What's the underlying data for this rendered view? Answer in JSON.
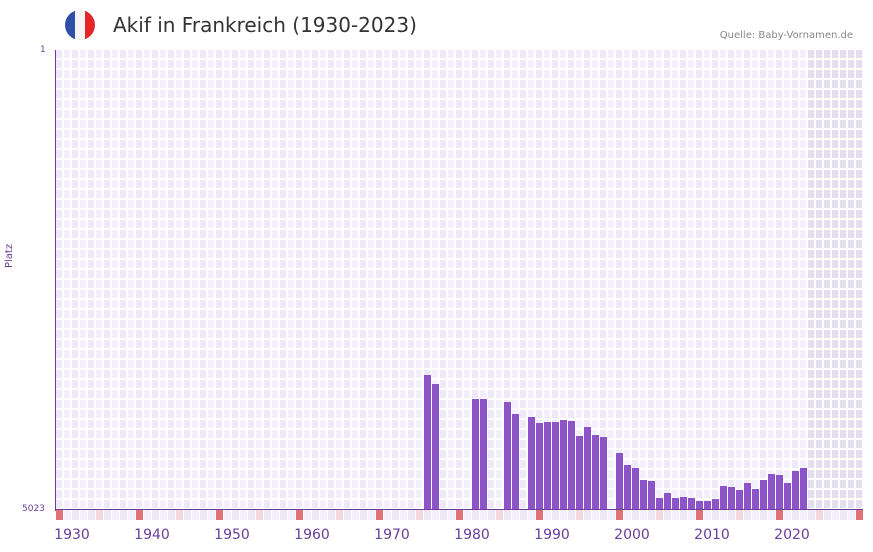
{
  "header": {
    "title": "Akif in Frankreich (1930-2023)",
    "source": "Quelle: Baby-Vornamen.de",
    "flag_colors": [
      "#2f4fa6",
      "#f4f4f4",
      "#e52628"
    ]
  },
  "colors": {
    "bar": "#8c54c8",
    "axis": "#6a3d9a",
    "grid_a": "#eee8f8",
    "grid_b": "#f3effc",
    "future": "#e3dfee",
    "decade_marker": "#e07278",
    "half_decade_marker": "#f5d7de"
  },
  "chart_data": {
    "type": "bar",
    "title": "Akif in Frankreich (1930-2023)",
    "xlabel": "",
    "ylabel": "Platz",
    "ylim": [
      5023,
      1
    ],
    "y_inverted": true,
    "ytick_labels": [
      "1",
      "5023"
    ],
    "xtick_labels": [
      "1930",
      "1940",
      "1950",
      "1960",
      "1970",
      "1980",
      "1990",
      "2000",
      "2010",
      "2020"
    ],
    "grid": true,
    "legend": null,
    "categories": [
      1974,
      1975,
      1980,
      1981,
      1984,
      1985,
      1987,
      1988,
      1989,
      1990,
      1991,
      1992,
      1993,
      1994,
      1995,
      1996,
      1998,
      1999,
      2000,
      2001,
      2002,
      2003,
      2004,
      2005,
      2006,
      2007,
      2008,
      2009,
      2010,
      2011,
      2012,
      2013,
      2014,
      2015,
      2016,
      2017,
      2018,
      2019,
      2020,
      2021
    ],
    "values": [
      3554,
      3652,
      3816,
      3816,
      3849,
      3980,
      4013,
      4068,
      4057,
      4057,
      4035,
      4046,
      4210,
      4112,
      4199,
      4221,
      4406,
      4527,
      4560,
      4691,
      4702,
      4887,
      4833,
      4887,
      4876,
      4887,
      4920,
      4920,
      4898,
      4756,
      4767,
      4800,
      4723,
      4789,
      4691,
      4625,
      4636,
      4723,
      4592,
      4560
    ],
    "series": [
      {
        "name": "Platz",
        "values": [
          3554,
          3652,
          3816,
          3816,
          3849,
          3980,
          4013,
          4068,
          4057,
          4057,
          4035,
          4046,
          4210,
          4112,
          4199,
          4221,
          4406,
          4527,
          4560,
          4691,
          4702,
          4887,
          4833,
          4887,
          4876,
          4887,
          4920,
          4920,
          4898,
          4756,
          4767,
          4800,
          4723,
          4789,
          4691,
          4625,
          4636,
          4723,
          4592,
          4560
        ]
      }
    ]
  }
}
